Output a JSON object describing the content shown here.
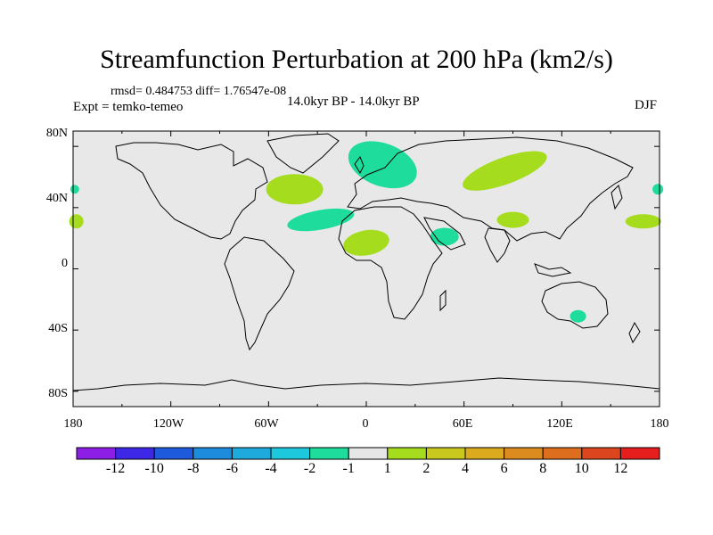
{
  "title": "Streamfunction Perturbation at 200 hPa (km2/s)",
  "stats": "rmsd= 0.484753 diff= 1.76547e-08",
  "experiment": "Expt = temko-temeo",
  "period": "14.0kyr BP - 14.0kyr BP",
  "season": "DJF",
  "map": {
    "lat_ticks": [
      "80N",
      "40N",
      "0",
      "40S",
      "80S"
    ],
    "lon_ticks": [
      "180",
      "120W",
      "60W",
      "0",
      "60E",
      "120E",
      "180"
    ],
    "ocean_color": "#e8e8e8",
    "contours": [
      {
        "center_lon": -44,
        "center_lat": 52,
        "level": "2",
        "color": "#a5dc1e"
      },
      {
        "center_lon": 10,
        "center_lat": 68,
        "level": "-2",
        "color": "#1edc9b"
      },
      {
        "center_lon": 85,
        "center_lat": 64,
        "level": "2",
        "color": "#a5dc1e"
      },
      {
        "center_lon": -28,
        "center_lat": 32,
        "level": "-2",
        "color": "#1edc9b"
      },
      {
        "center_lon": 0,
        "center_lat": 17,
        "level": "2",
        "color": "#a5dc1e"
      },
      {
        "center_lon": 48,
        "center_lat": 21,
        "level": "-2",
        "color": "#1edc9b"
      },
      {
        "center_lon": 90,
        "center_lat": 32,
        "level": "2",
        "color": "#a5dc1e"
      },
      {
        "center_lon": 170,
        "center_lat": 31,
        "level": "2",
        "color": "#a5dc1e"
      },
      {
        "center_lon": -178,
        "center_lat": 31,
        "level": "2",
        "color": "#a5dc1e"
      },
      {
        "center_lon": 179,
        "center_lat": 52,
        "level": "-2",
        "color": "#1edc9b"
      },
      {
        "center_lon": -179,
        "center_lat": 52,
        "level": "-2",
        "color": "#1edc9b"
      },
      {
        "center_lon": 130,
        "center_lat": -31,
        "level": "-2",
        "color": "#1edc9b"
      }
    ]
  },
  "colorbar": {
    "labels": [
      "-12",
      "-10",
      "-8",
      "-6",
      "-4",
      "-2",
      "-1",
      "1",
      "2",
      "4",
      "6",
      "8",
      "10",
      "12"
    ],
    "colors": [
      "#8c1ee6",
      "#3c28e6",
      "#1e5adc",
      "#1e8cdc",
      "#1eaadc",
      "#1ec8dc",
      "#1edc9b",
      "#e6e6e6",
      "#a5dc1e",
      "#c8c81e",
      "#dcaa1e",
      "#dc8c1e",
      "#dc6e1e",
      "#dc461e",
      "#e61e1e"
    ]
  }
}
